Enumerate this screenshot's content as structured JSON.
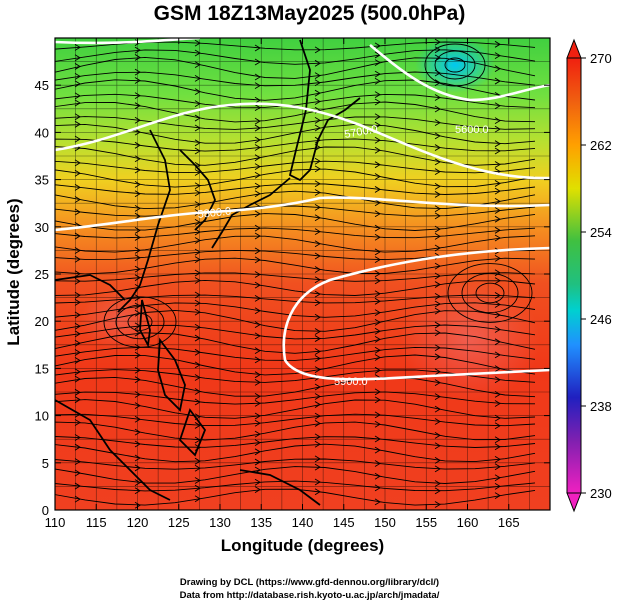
{
  "title": "GSM 18Z13May2025 (500.0hPa)",
  "x_axis": {
    "label": "Longitude (degrees)",
    "range": [
      110,
      170
    ],
    "ticks": [
      "110",
      "115",
      "120",
      "125",
      "130",
      "135",
      "140",
      "145",
      "150",
      "155",
      "160",
      "165"
    ]
  },
  "y_axis": {
    "label": "Latitude  (degrees)",
    "range": [
      0,
      50
    ],
    "ticks": [
      "0",
      "5",
      "10",
      "15",
      "20",
      "25",
      "30",
      "35",
      "40",
      "45"
    ]
  },
  "colorbar": {
    "range": [
      230,
      270
    ],
    "labels": [
      "270",
      "262",
      "254",
      "246",
      "238",
      "230"
    ],
    "colors": [
      "#f02010",
      "#ff8c00",
      "#e0e000",
      "#30c030",
      "#00d0d0",
      "#2090ff",
      "#2020c0",
      "#e020c0"
    ]
  },
  "contours": [
    {
      "label": "5700.0"
    },
    {
      "label": "5800.0"
    },
    {
      "label": "5900.0"
    },
    {
      "label": "5600.0"
    }
  ],
  "credits": {
    "line1": "Drawing by DCL (https://www.gfd-dennou.org/library/dcl/)",
    "line2": "Data from http://database.rish.kyoto-u.ac.jp/arch/jmadata/"
  }
}
